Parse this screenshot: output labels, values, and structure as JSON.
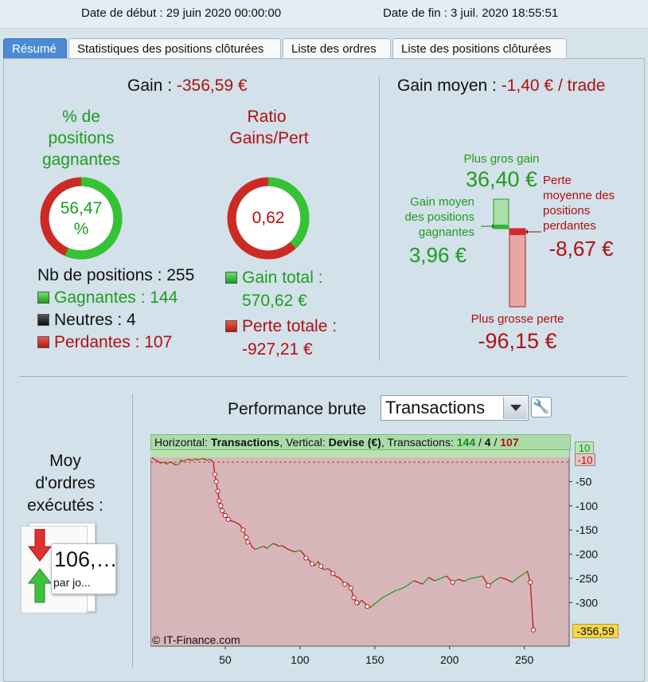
{
  "header": {
    "start_date": "Date de début : 29 juin 2020 00:00:00",
    "end_date": "Date de fin : 3 juil. 2020 18:55:51"
  },
  "tabs": [
    {
      "label": "Résumé",
      "active": true
    },
    {
      "label": "Statistiques des positions clôturées",
      "active": false
    },
    {
      "label": "Liste des ordres",
      "active": false
    },
    {
      "label": "Liste des positions clôturées",
      "active": false
    }
  ],
  "summary": {
    "gain_label": "Gain : ",
    "gain_value": "-356,59 €",
    "win_pct_title_1": "% de",
    "win_pct_title_2": "positions",
    "win_pct_title_3": "gagnantes",
    "win_pct_value_1": "56,47",
    "win_pct_value_2": "%",
    "win_pct_fraction": 0.5647,
    "ratio_title_1": "Ratio",
    "ratio_title_2": "Gains/Pert",
    "ratio_value": "0,62",
    "ratio_fraction": 0.381,
    "nb_positions": "Nb de positions : 255",
    "winners": "Gagnantes : 144",
    "neutral": "Neutres : 4",
    "losers": "Perdantes : 107",
    "gain_total_label": "Gain total :",
    "gain_total_value": "570,62 €",
    "loss_total_label": "Perte totale :",
    "loss_total_value": "-927,21 €"
  },
  "average": {
    "title_label": "Gain moyen : ",
    "title_value": "-1,40 € / trade",
    "max_gain_label": "Plus gros gain",
    "max_gain_value": "36,40 €",
    "avg_win_label_1": "Gain moyen",
    "avg_win_label_2": "des positions",
    "avg_win_label_3": "gagnantes",
    "avg_win_value": "3,96 €",
    "avg_loss_label_1": "Perte",
    "avg_loss_label_2": "moyenne des",
    "avg_loss_label_3": "positions",
    "avg_loss_label_4": "perdantes",
    "avg_loss_value": "-8,67 €",
    "max_loss_label": "Plus grosse perte",
    "max_loss_value": "-96,15 €"
  },
  "orders": {
    "title_1": "Moy",
    "title_2": "d'ordres",
    "title_3": "exécutés :",
    "value": "106,…",
    "unit": "par jo..."
  },
  "performance": {
    "title": "Performance brute",
    "select_value": "Transactions",
    "info_h_label": "Horizontal: ",
    "info_h_value": "Transactions",
    "info_v_label": ", Vertical: ",
    "info_v_value": "Devise (€)",
    "info_t_label": ", Transactions: ",
    "info_wins": "144",
    "info_sep1": " / ",
    "info_neutral": "4",
    "info_sep2": " / ",
    "info_losses": "107",
    "copyright": "© IT-Finance.com",
    "y_max_flag": "10",
    "y_min_flag": "-10",
    "last_value_flag": "-356,59"
  },
  "chart_data": {
    "type": "line",
    "xlabel": "",
    "ylabel": "",
    "xlim": [
      0,
      280
    ],
    "ylim": [
      -390,
      15
    ],
    "x_ticks": [
      50,
      100,
      150,
      200,
      250
    ],
    "y_ticks": [
      -50,
      -100,
      -150,
      -200,
      -250,
      -300
    ],
    "colors": {
      "gain": "#1f9c1f",
      "loss": "#c01818",
      "marker": "#c01818"
    },
    "series": [
      {
        "x": [
          1,
          3,
          5,
          7,
          9,
          11,
          13,
          15,
          17,
          19,
          20,
          22,
          25,
          28,
          30,
          32,
          35,
          38,
          40,
          42,
          43,
          44,
          45,
          46,
          47,
          48,
          50,
          52,
          53,
          55,
          57,
          58,
          60,
          62,
          64,
          65,
          67,
          68,
          70,
          72,
          74,
          76,
          78,
          80,
          82,
          84,
          86,
          88,
          90,
          92,
          94,
          96,
          98,
          100,
          102,
          104,
          106,
          108,
          110,
          112,
          114,
          116,
          118,
          120,
          122,
          124,
          126,
          128,
          130,
          132,
          134,
          136,
          138,
          139,
          141,
          143,
          145,
          147,
          149,
          151,
          153,
          155,
          158,
          161,
          164,
          167,
          170,
          173,
          176,
          179,
          182,
          186,
          190,
          194,
          198,
          202,
          206,
          210,
          214,
          218,
          222,
          226,
          230,
          234,
          238,
          242,
          246,
          250,
          252,
          254,
          256
        ],
        "y": [
          0,
          -5,
          -8,
          -12,
          -10,
          -14,
          -9,
          -12,
          -16,
          -14,
          -6,
          -8,
          -4,
          -6,
          -3,
          -5,
          -2,
          -6,
          -4,
          -10,
          -35,
          -50,
          -70,
          -90,
          -100,
          -110,
          -120,
          -128,
          -130,
          -132,
          -134,
          -136,
          -140,
          -150,
          -165,
          -175,
          -178,
          -185,
          -190,
          -188,
          -185,
          -184,
          -188,
          -182,
          -178,
          -180,
          -184,
          -182,
          -186,
          -190,
          -192,
          -195,
          -194,
          -192,
          -198,
          -208,
          -212,
          -220,
          -224,
          -215,
          -225,
          -232,
          -230,
          -232,
          -240,
          -246,
          -248,
          -254,
          -262,
          -260,
          -270,
          -290,
          -300,
          -305,
          -295,
          -300,
          -308,
          -310,
          -305,
          -300,
          -295,
          -290,
          -285,
          -280,
          -275,
          -272,
          -268,
          -262,
          -255,
          -258,
          -262,
          -248,
          -255,
          -250,
          -245,
          -258,
          -252,
          -256,
          -250,
          -248,
          -245,
          -265,
          -255,
          -248,
          -252,
          -258,
          -248,
          -240,
          -235,
          -258,
          -356.59
        ]
      }
    ]
  }
}
